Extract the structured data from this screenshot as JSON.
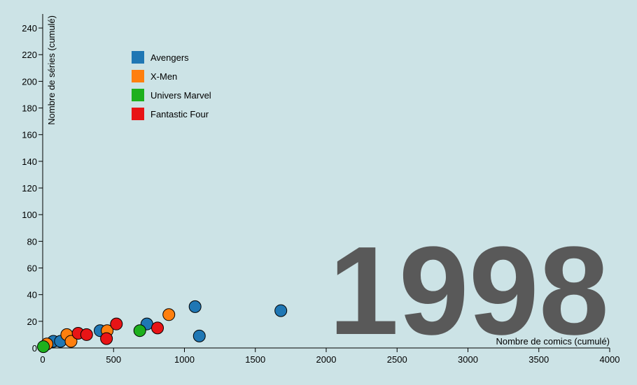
{
  "chart_data": {
    "type": "scatter",
    "year": "1998",
    "xlabel": "Nombre de comics (cumulé)",
    "ylabel": "Nombre de séries (cumulé)",
    "xlim": [
      0,
      4000
    ],
    "ylim": [
      0,
      250
    ],
    "x_ticks": [
      0,
      500,
      1000,
      1500,
      2000,
      2500,
      3000,
      3500,
      4000
    ],
    "y_ticks": [
      0,
      20,
      40,
      60,
      80,
      100,
      120,
      140,
      160,
      180,
      200,
      220,
      240
    ],
    "legend_position": "top-left",
    "series": [
      {
        "name": "Avengers",
        "color": "#1f77b4",
        "points": [
          {
            "x": 75,
            "y": 5
          },
          {
            "x": 125,
            "y": 5
          },
          {
            "x": 405,
            "y": 13
          },
          {
            "x": 735,
            "y": 18
          },
          {
            "x": 1075,
            "y": 31
          },
          {
            "x": 1105,
            "y": 9
          },
          {
            "x": 1680,
            "y": 28
          }
        ]
      },
      {
        "name": "X-Men",
        "color": "#ff7f0e",
        "points": [
          {
            "x": 30,
            "y": 3
          },
          {
            "x": 170,
            "y": 10
          },
          {
            "x": 200,
            "y": 5
          },
          {
            "x": 455,
            "y": 13
          },
          {
            "x": 890,
            "y": 25
          }
        ]
      },
      {
        "name": "Univers Marvel",
        "color": "#1db01d",
        "points": [
          {
            "x": 5,
            "y": 1
          },
          {
            "x": 685,
            "y": 13
          }
        ]
      },
      {
        "name": "Fantastic Four",
        "color": "#e81416",
        "points": [
          {
            "x": 250,
            "y": 11
          },
          {
            "x": 310,
            "y": 10
          },
          {
            "x": 450,
            "y": 7
          },
          {
            "x": 520,
            "y": 18
          },
          {
            "x": 810,
            "y": 15
          }
        ]
      }
    ]
  }
}
